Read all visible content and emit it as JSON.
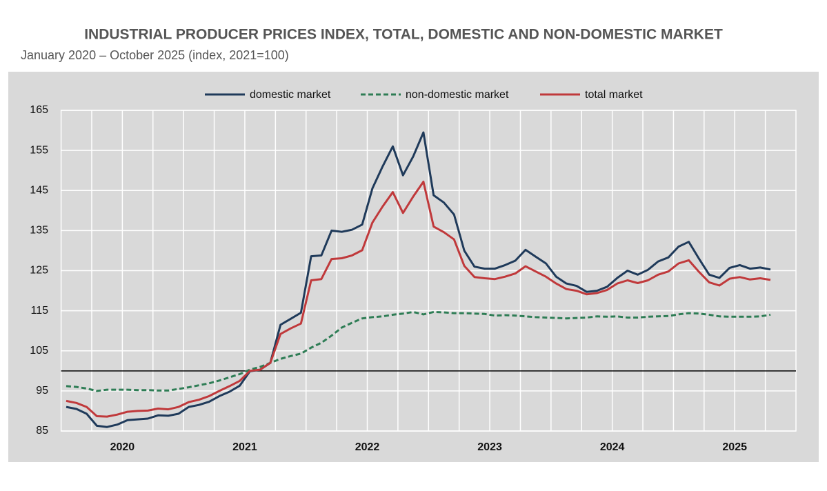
{
  "chart_data": {
    "type": "line",
    "title": "INDUSTRIAL PRODUCER PRICES INDEX, TOTAL, DOMESTIC AND NON-DOMESTIC MARKET",
    "subtitle": "January 2020 – October 2025 (index, 2021=100)",
    "categories": [
      null,
      null,
      null,
      null,
      null,
      null,
      "2020",
      null,
      null,
      null,
      null,
      null,
      null,
      null,
      null,
      null,
      null,
      null,
      "2021",
      null,
      null,
      null,
      null,
      null,
      null,
      null,
      null,
      null,
      null,
      null,
      "2022",
      null,
      null,
      null,
      null,
      null,
      null,
      null,
      null,
      null,
      null,
      null,
      "2023",
      null,
      null,
      null,
      null,
      null,
      null,
      null,
      null,
      null,
      null,
      null,
      "2024",
      null,
      null,
      null,
      null,
      null,
      null,
      null,
      null,
      null,
      null,
      null,
      "2025",
      null,
      null,
      null
    ],
    "series": [
      {
        "name": "domestic market",
        "color": "#1f3a5a",
        "dash": false,
        "values": [
          91.0,
          90.5,
          89.3,
          86.3,
          86.0,
          86.6,
          87.7,
          87.9,
          88.1,
          88.9,
          88.8,
          89.3,
          91.0,
          91.5,
          92.3,
          93.7,
          94.8,
          96.3,
          99.9,
          100.3,
          102.0,
          111.5,
          113.0,
          114.5,
          128.6,
          128.8,
          135.0,
          134.7,
          135.2,
          136.5,
          145.5,
          151.0,
          156.0,
          148.8,
          153.5,
          159.5,
          143.8,
          142.0,
          139.0,
          130.0,
          126.0,
          125.5,
          125.5,
          126.4,
          127.5,
          130.2,
          128.5,
          126.8,
          123.5,
          121.8,
          121.2,
          119.7,
          120.0,
          121.0,
          123.2,
          125.0,
          124.0,
          125.2,
          127.3,
          128.3,
          131.0,
          132.2,
          128.0,
          124.0,
          123.2,
          125.7,
          126.4,
          125.5,
          125.8,
          125.3
        ]
      },
      {
        "name": "non-domestic market",
        "color": "#2e7d55",
        "dash": true,
        "values": [
          96.2,
          96.0,
          95.6,
          95.0,
          95.3,
          95.3,
          95.3,
          95.2,
          95.2,
          95.1,
          95.1,
          95.5,
          95.9,
          96.4,
          96.9,
          97.6,
          98.4,
          99.2,
          100.3,
          101.0,
          102.0,
          103.0,
          103.7,
          104.3,
          105.8,
          107.0,
          108.8,
          110.8,
          112.0,
          113.1,
          113.4,
          113.6,
          114.0,
          114.3,
          114.7,
          114.1,
          114.7,
          114.6,
          114.4,
          114.4,
          114.3,
          114.2,
          113.8,
          113.9,
          113.8,
          113.6,
          113.4,
          113.3,
          113.2,
          113.1,
          113.2,
          113.3,
          113.6,
          113.5,
          113.6,
          113.3,
          113.3,
          113.5,
          113.6,
          113.7,
          114.1,
          114.4,
          114.3,
          114.0,
          113.6,
          113.5,
          113.5,
          113.5,
          113.6,
          114.0
        ]
      },
      {
        "name": "total market",
        "color": "#c0393b",
        "dash": false,
        "values": [
          92.5,
          92.0,
          91.0,
          88.7,
          88.6,
          89.1,
          89.8,
          90.0,
          90.1,
          90.6,
          90.4,
          91.0,
          92.2,
          92.8,
          93.7,
          95.0,
          96.2,
          97.5,
          100.0,
          100.3,
          102.0,
          109.2,
          110.6,
          111.8,
          122.6,
          122.9,
          127.9,
          128.1,
          128.8,
          130.1,
          137.0,
          141.0,
          144.6,
          139.4,
          143.5,
          147.2,
          136.0,
          134.6,
          132.8,
          126.2,
          123.4,
          123.1,
          122.9,
          123.5,
          124.3,
          126.1,
          124.8,
          123.5,
          121.8,
          120.4,
          120.0,
          119.1,
          119.4,
          120.2,
          121.8,
          122.6,
          121.9,
          122.6,
          124.0,
          124.8,
          126.8,
          127.6,
          124.7,
          122.1,
          121.3,
          123.0,
          123.4,
          122.8,
          123.1,
          122.7
        ]
      }
    ],
    "ylim": [
      85,
      165
    ],
    "yticks": [
      85,
      95,
      105,
      115,
      125,
      135,
      145,
      155,
      165
    ],
    "reference_line": 100,
    "grid": true,
    "legend": "top"
  }
}
